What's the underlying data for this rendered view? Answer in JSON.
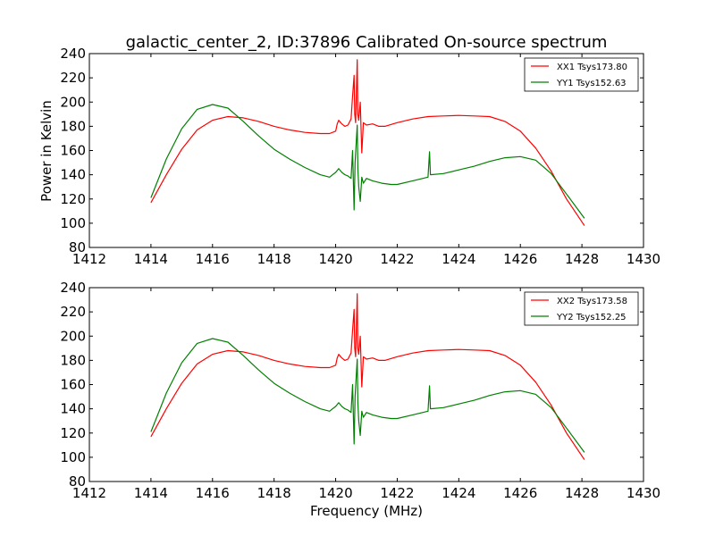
{
  "figure": {
    "title": "galactic_center_2, ID:37896 Calibrated On-source spectrum",
    "xlabel": "Frequency (MHz)",
    "ylabel": "Power in Kelvin"
  },
  "chart_data": [
    {
      "type": "line",
      "xlim": [
        1412,
        1430
      ],
      "ylim": [
        80,
        240
      ],
      "xticks": [
        1412,
        1414,
        1416,
        1418,
        1420,
        1422,
        1424,
        1426,
        1428,
        1430
      ],
      "yticks": [
        80,
        100,
        120,
        140,
        160,
        180,
        200,
        220,
        240
      ],
      "grid": false,
      "legend_position": "top-right",
      "series": [
        {
          "name": "XX1 Tsys173.80",
          "color": "#ff0000",
          "points": [
            [
              1414.0,
              117
            ],
            [
              1414.5,
              140
            ],
            [
              1415.0,
              161
            ],
            [
              1415.5,
              177
            ],
            [
              1416.0,
              185
            ],
            [
              1416.5,
              188
            ],
            [
              1417.0,
              187
            ],
            [
              1417.5,
              184
            ],
            [
              1418.0,
              180
            ],
            [
              1418.5,
              177
            ],
            [
              1419.0,
              175
            ],
            [
              1419.5,
              174
            ],
            [
              1419.8,
              174
            ],
            [
              1420.0,
              176
            ],
            [
              1420.05,
              182
            ],
            [
              1420.1,
              185
            ],
            [
              1420.2,
              182
            ],
            [
              1420.3,
              180
            ],
            [
              1420.4,
              181
            ],
            [
              1420.5,
              186
            ],
            [
              1420.55,
              205
            ],
            [
              1420.6,
              222
            ],
            [
              1420.62,
              190
            ],
            [
              1420.65,
              183
            ],
            [
              1420.7,
              235
            ],
            [
              1420.72,
              190
            ],
            [
              1420.75,
              185
            ],
            [
              1420.8,
              200
            ],
            [
              1420.85,
              158
            ],
            [
              1420.9,
              183
            ],
            [
              1421.0,
              181
            ],
            [
              1421.2,
              182
            ],
            [
              1421.4,
              180
            ],
            [
              1421.6,
              180
            ],
            [
              1422.0,
              183
            ],
            [
              1422.5,
              186
            ],
            [
              1423.0,
              188
            ],
            [
              1423.5,
              188.5
            ],
            [
              1424.0,
              189
            ],
            [
              1424.5,
              188.5
            ],
            [
              1425.0,
              188
            ],
            [
              1425.5,
              184
            ],
            [
              1426.0,
              176
            ],
            [
              1426.5,
              162
            ],
            [
              1427.0,
              143
            ],
            [
              1427.5,
              120
            ],
            [
              1428.08,
              98
            ]
          ]
        },
        {
          "name": "YY1 Tsys152.63",
          "color": "#008000",
          "points": [
            [
              1414.0,
              121
            ],
            [
              1414.5,
              153
            ],
            [
              1415.0,
              178
            ],
            [
              1415.5,
              194
            ],
            [
              1416.0,
              198
            ],
            [
              1416.5,
              195
            ],
            [
              1417.0,
              184
            ],
            [
              1417.5,
              172
            ],
            [
              1418.0,
              161
            ],
            [
              1418.5,
              153
            ],
            [
              1419.0,
              146
            ],
            [
              1419.5,
              140
            ],
            [
              1419.8,
              138
            ],
            [
              1420.0,
              142
            ],
            [
              1420.1,
              145
            ],
            [
              1420.2,
              142
            ],
            [
              1420.3,
              140
            ],
            [
              1420.4,
              139
            ],
            [
              1420.5,
              137
            ],
            [
              1420.55,
              160
            ],
            [
              1420.6,
              111
            ],
            [
              1420.63,
              150
            ],
            [
              1420.7,
              181
            ],
            [
              1420.72,
              145
            ],
            [
              1420.75,
              130
            ],
            [
              1420.8,
              118
            ],
            [
              1420.85,
              138
            ],
            [
              1420.9,
              133
            ],
            [
              1421.0,
              137
            ],
            [
              1421.2,
              135
            ],
            [
              1421.5,
              133
            ],
            [
              1421.8,
              132
            ],
            [
              1422.0,
              132
            ],
            [
              1422.5,
              135
            ],
            [
              1423.0,
              138
            ],
            [
              1423.05,
              159
            ],
            [
              1423.08,
              140
            ],
            [
              1423.5,
              141
            ],
            [
              1424.0,
              144
            ],
            [
              1424.5,
              147
            ],
            [
              1425.0,
              151
            ],
            [
              1425.5,
              154
            ],
            [
              1426.0,
              155
            ],
            [
              1426.5,
              152
            ],
            [
              1427.0,
              141
            ],
            [
              1427.5,
              124
            ],
            [
              1428.08,
              104
            ]
          ]
        }
      ]
    },
    {
      "type": "line",
      "xlim": [
        1412,
        1430
      ],
      "ylim": [
        80,
        240
      ],
      "xticks": [
        1412,
        1414,
        1416,
        1418,
        1420,
        1422,
        1424,
        1426,
        1428,
        1430
      ],
      "yticks": [
        80,
        100,
        120,
        140,
        160,
        180,
        200,
        220,
        240
      ],
      "grid": false,
      "legend_position": "top-right",
      "series": [
        {
          "name": "XX2 Tsys173.58",
          "color": "#ff0000",
          "points": [
            [
              1414.0,
              117
            ],
            [
              1414.5,
              140
            ],
            [
              1415.0,
              161
            ],
            [
              1415.5,
              177
            ],
            [
              1416.0,
              185
            ],
            [
              1416.5,
              188
            ],
            [
              1417.0,
              187
            ],
            [
              1417.5,
              184
            ],
            [
              1418.0,
              180
            ],
            [
              1418.5,
              177
            ],
            [
              1419.0,
              175
            ],
            [
              1419.5,
              174
            ],
            [
              1419.8,
              174
            ],
            [
              1420.0,
              176
            ],
            [
              1420.05,
              182
            ],
            [
              1420.1,
              185
            ],
            [
              1420.2,
              182
            ],
            [
              1420.3,
              180
            ],
            [
              1420.4,
              181
            ],
            [
              1420.5,
              186
            ],
            [
              1420.55,
              205
            ],
            [
              1420.6,
              222
            ],
            [
              1420.62,
              190
            ],
            [
              1420.65,
              183
            ],
            [
              1420.7,
              235
            ],
            [
              1420.72,
              190
            ],
            [
              1420.75,
              185
            ],
            [
              1420.8,
              200
            ],
            [
              1420.85,
              158
            ],
            [
              1420.9,
              183
            ],
            [
              1421.0,
              181
            ],
            [
              1421.2,
              182
            ],
            [
              1421.4,
              180
            ],
            [
              1421.6,
              180
            ],
            [
              1422.0,
              183
            ],
            [
              1422.5,
              186
            ],
            [
              1423.0,
              188
            ],
            [
              1423.5,
              188.5
            ],
            [
              1424.0,
              189
            ],
            [
              1424.5,
              188.5
            ],
            [
              1425.0,
              188
            ],
            [
              1425.5,
              184
            ],
            [
              1426.0,
              176
            ],
            [
              1426.5,
              162
            ],
            [
              1427.0,
              143
            ],
            [
              1427.5,
              120
            ],
            [
              1428.08,
              98
            ]
          ]
        },
        {
          "name": "YY2 Tsys152.25",
          "color": "#008000",
          "points": [
            [
              1414.0,
              121
            ],
            [
              1414.5,
              153
            ],
            [
              1415.0,
              178
            ],
            [
              1415.5,
              194
            ],
            [
              1416.0,
              198
            ],
            [
              1416.5,
              195
            ],
            [
              1417.0,
              184
            ],
            [
              1417.5,
              172
            ],
            [
              1418.0,
              161
            ],
            [
              1418.5,
              153
            ],
            [
              1419.0,
              146
            ],
            [
              1419.5,
              140
            ],
            [
              1419.8,
              138
            ],
            [
              1420.0,
              142
            ],
            [
              1420.1,
              145
            ],
            [
              1420.2,
              142
            ],
            [
              1420.3,
              140
            ],
            [
              1420.4,
              139
            ],
            [
              1420.5,
              137
            ],
            [
              1420.55,
              160
            ],
            [
              1420.6,
              111
            ],
            [
              1420.63,
              150
            ],
            [
              1420.7,
              181
            ],
            [
              1420.72,
              145
            ],
            [
              1420.75,
              130
            ],
            [
              1420.8,
              118
            ],
            [
              1420.85,
              138
            ],
            [
              1420.9,
              133
            ],
            [
              1421.0,
              137
            ],
            [
              1421.2,
              135
            ],
            [
              1421.5,
              133
            ],
            [
              1421.8,
              132
            ],
            [
              1422.0,
              132
            ],
            [
              1422.5,
              135
            ],
            [
              1423.0,
              138
            ],
            [
              1423.05,
              159
            ],
            [
              1423.08,
              140
            ],
            [
              1423.5,
              141
            ],
            [
              1424.0,
              144
            ],
            [
              1424.5,
              147
            ],
            [
              1425.0,
              151
            ],
            [
              1425.5,
              154
            ],
            [
              1426.0,
              155
            ],
            [
              1426.5,
              152
            ],
            [
              1427.0,
              141
            ],
            [
              1427.5,
              124
            ],
            [
              1428.08,
              104
            ]
          ]
        }
      ]
    }
  ]
}
